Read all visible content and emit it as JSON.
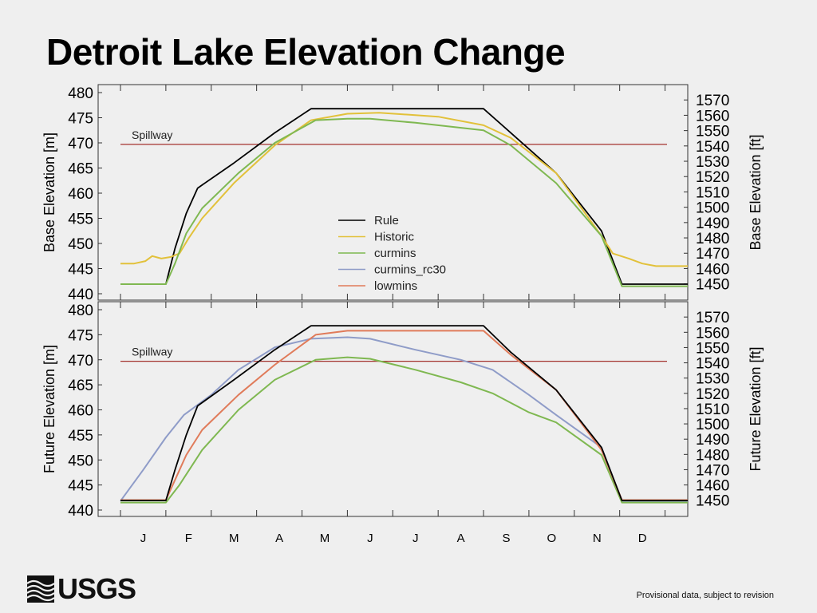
{
  "page": {
    "title": "Detroit Lake Elevation Change",
    "footer_note": "Provisional data, subject to revision",
    "logo_text": "USGS",
    "logo_icon": "usgs-wave-icon"
  },
  "colors": {
    "Rule": "#000000",
    "Historic": "#e2c13a",
    "curmins": "#7fb851",
    "curmins_rc30": "#8f9cc8",
    "lowmins": "#e07b5a",
    "spillway": "#a3322e",
    "grid": "#bbbbbb"
  },
  "chart_data": [
    {
      "type": "line",
      "id": "top",
      "ylabel": "Base Elevation [m]",
      "y2label": "Base Elevation [ft]",
      "ylim": [
        440,
        480
      ],
      "yticks": [
        "440",
        "445",
        "450",
        "455",
        "460",
        "465",
        "470",
        "475",
        "480"
      ],
      "y2ticks": [
        "1450",
        "1460",
        "1470",
        "1480",
        "1490",
        "1500",
        "1510",
        "1520",
        "1530",
        "1540",
        "1550",
        "1560",
        "1570"
      ],
      "xlim": [
        0,
        12.5
      ],
      "annotation": {
        "text": "Spillway",
        "y": 469.7
      },
      "legend": [
        "Rule",
        "Historic",
        "curmins",
        "curmins_rc30",
        "lowmins"
      ],
      "legend_position": "center",
      "series": [
        {
          "name": "Rule",
          "points": [
            [
              0,
              441.9
            ],
            [
              1,
              441.9
            ],
            [
              1.2,
              449
            ],
            [
              1.45,
              456
            ],
            [
              1.7,
              461
            ],
            [
              2.5,
              466
            ],
            [
              3.4,
              472
            ],
            [
              4.2,
              476.8
            ],
            [
              8.0,
              476.8
            ],
            [
              8.6,
              472
            ],
            [
              9.6,
              464
            ],
            [
              10.6,
              452.5
            ],
            [
              11.05,
              441.9
            ],
            [
              12.5,
              441.9
            ]
          ]
        },
        {
          "name": "Historic",
          "points": [
            [
              0,
              446
            ],
            [
              0.3,
              446
            ],
            [
              0.55,
              446.5
            ],
            [
              0.7,
              447.5
            ],
            [
              0.9,
              447
            ],
            [
              1.1,
              447.3
            ],
            [
              1.3,
              448
            ],
            [
              1.5,
              451
            ],
            [
              1.8,
              455
            ],
            [
              2.5,
              462
            ],
            [
              3.4,
              469.5
            ],
            [
              4.2,
              474.5
            ],
            [
              5.0,
              475.8
            ],
            [
              5.7,
              476
            ],
            [
              7.0,
              475.2
            ],
            [
              8.0,
              473.5
            ],
            [
              8.6,
              471
            ],
            [
              9.6,
              464
            ],
            [
              10.6,
              451.5
            ],
            [
              10.85,
              448
            ],
            [
              11.2,
              447
            ],
            [
              11.5,
              446
            ],
            [
              11.8,
              445.5
            ],
            [
              12.1,
              445.5
            ],
            [
              12.5,
              445.5
            ]
          ]
        },
        {
          "name": "curmins",
          "points": [
            [
              0,
              441.9
            ],
            [
              1,
              441.9
            ],
            [
              1.2,
              446
            ],
            [
              1.45,
              452
            ],
            [
              1.8,
              457
            ],
            [
              2.6,
              464
            ],
            [
              3.4,
              470
            ],
            [
              4.3,
              474.5
            ],
            [
              5.0,
              474.8
            ],
            [
              5.5,
              474.8
            ],
            [
              6.5,
              474
            ],
            [
              8.0,
              472.5
            ],
            [
              8.6,
              469.5
            ],
            [
              9.6,
              462
            ],
            [
              10.6,
              451.5
            ],
            [
              11.05,
              441.5
            ],
            [
              12.5,
              441.5
            ]
          ]
        }
      ]
    },
    {
      "type": "line",
      "id": "bottom",
      "ylabel": "Future Elevation [m]",
      "y2label": "Future Elevation [ft]",
      "ylim": [
        440,
        480
      ],
      "yticks": [
        "440",
        "445",
        "450",
        "455",
        "460",
        "465",
        "470",
        "475",
        "480"
      ],
      "y2ticks": [
        "1450",
        "1460",
        "1470",
        "1480",
        "1490",
        "1500",
        "1510",
        "1520",
        "1530",
        "1540",
        "1550",
        "1560",
        "1570"
      ],
      "xlim": [
        0,
        12.5
      ],
      "annotation": {
        "text": "Spillway",
        "y": 469.7
      },
      "series": [
        {
          "name": "curmins_rc30",
          "points": [
            [
              0,
              441.8
            ],
            [
              0.5,
              448
            ],
            [
              1,
              454.5
            ],
            [
              1.4,
              459
            ],
            [
              2,
              463
            ],
            [
              2.6,
              468
            ],
            [
              3.4,
              472.5
            ],
            [
              4.2,
              474.2
            ],
            [
              5,
              474.5
            ],
            [
              5.5,
              474.2
            ],
            [
              6.5,
              472
            ],
            [
              7.5,
              470
            ],
            [
              8.2,
              468
            ],
            [
              9,
              463
            ],
            [
              9.6,
              459
            ],
            [
              10.6,
              452.5
            ],
            [
              11.05,
              441.8
            ],
            [
              12.5,
              441.8
            ]
          ]
        },
        {
          "name": "curmins",
          "points": [
            [
              0,
              441.5
            ],
            [
              1,
              441.5
            ],
            [
              1.3,
              445
            ],
            [
              1.8,
              452
            ],
            [
              2.6,
              460
            ],
            [
              3.4,
              466
            ],
            [
              4.3,
              470
            ],
            [
              5,
              470.5
            ],
            [
              5.5,
              470.2
            ],
            [
              6.5,
              468
            ],
            [
              7.5,
              465.5
            ],
            [
              8.2,
              463.3
            ],
            [
              9,
              459.5
            ],
            [
              9.6,
              457.5
            ],
            [
              10.6,
              451
            ],
            [
              11.05,
              441.5
            ],
            [
              12.5,
              441.5
            ]
          ]
        },
        {
          "name": "lowmins",
          "points": [
            [
              0,
              442
            ],
            [
              1,
              442
            ],
            [
              1.2,
              446
            ],
            [
              1.45,
              451
            ],
            [
              1.8,
              456
            ],
            [
              2.6,
              463
            ],
            [
              3.4,
              469
            ],
            [
              4.3,
              475
            ],
            [
              5,
              475.8
            ],
            [
              8,
              475.8
            ],
            [
              8.6,
              471
            ],
            [
              9.6,
              464
            ],
            [
              10.6,
              452
            ],
            [
              11.05,
              442
            ],
            [
              12.5,
              442
            ]
          ]
        },
        {
          "name": "Rule",
          "points": [
            [
              0,
              441.9
            ],
            [
              1,
              441.9
            ],
            [
              1.2,
              448
            ],
            [
              1.45,
              455
            ],
            [
              1.7,
              460.8
            ],
            [
              2.5,
              466
            ],
            [
              3.4,
              472
            ],
            [
              4.2,
              476.8
            ],
            [
              8,
              476.8
            ],
            [
              8.6,
              471.5
            ],
            [
              9.6,
              464
            ],
            [
              10.6,
              452.5
            ],
            [
              11.05,
              441.9
            ],
            [
              12.5,
              441.9
            ]
          ]
        }
      ]
    }
  ],
  "months": [
    "J",
    "F",
    "M",
    "A",
    "M",
    "J",
    "J",
    "A",
    "S",
    "O",
    "N",
    "D"
  ]
}
